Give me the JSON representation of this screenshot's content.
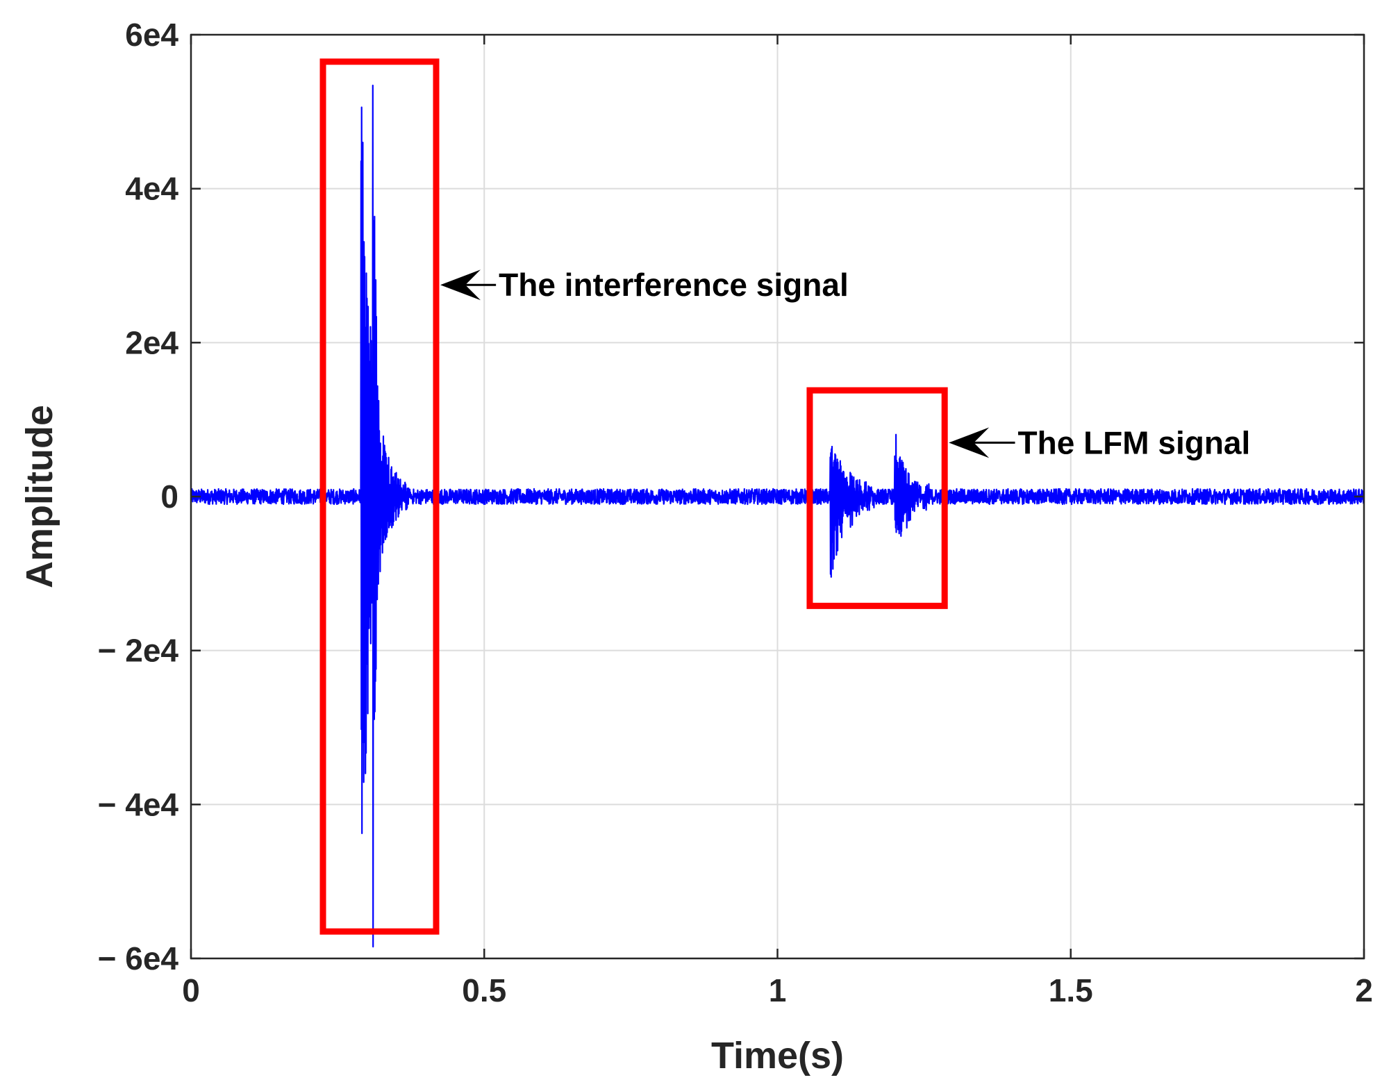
{
  "chart_data": {
    "type": "line",
    "title": "",
    "xlabel": "Time(s)",
    "ylabel": "Amplitude",
    "xlim": [
      0,
      2
    ],
    "ylim": [
      -60000,
      60000
    ],
    "grid": true,
    "xticks": [
      {
        "value": 0,
        "label": "0"
      },
      {
        "value": 0.5,
        "label": "0.5"
      },
      {
        "value": 1,
        "label": "1"
      },
      {
        "value": 1.5,
        "label": "1.5"
      },
      {
        "value": 2,
        "label": "2"
      }
    ],
    "yticks": [
      {
        "value": 60000,
        "label": "6e4"
      },
      {
        "value": 40000,
        "label": "4e4"
      },
      {
        "value": 20000,
        "label": "2e4"
      },
      {
        "value": 0,
        "label": "0"
      },
      {
        "value": -20000,
        "label": "− 2e4"
      },
      {
        "value": -40000,
        "label": "− 4e4"
      },
      {
        "value": -60000,
        "label": "− 6e4"
      }
    ],
    "series": [
      {
        "color": "#0000ff",
        "noise_amplitude": 1000,
        "bursts": [
          {
            "t_start": 0.29,
            "t_end": 0.375,
            "peak_max": 53500,
            "peak_min": -54500,
            "decay": 0.02
          },
          {
            "t_start": 0.31,
            "t_end": 0.32,
            "peak_max": 51500,
            "peak_min": -52500,
            "decay": 0.004
          },
          {
            "t_start": 1.09,
            "t_end": 1.165,
            "peak_max": 8000,
            "peak_min": -11000,
            "decay": 0.03
          },
          {
            "t_start": 1.2,
            "t_end": 1.26,
            "peak_max": 8500,
            "peak_min": -7500,
            "decay": 0.025
          }
        ]
      }
    ],
    "annotations": [
      {
        "text": "The interference signal",
        "box": {
          "x0": 0.225,
          "x1": 0.418,
          "y0": -56500,
          "y1": 56500
        },
        "color": "#ff0000",
        "arrow_to": {
          "x": 0.418,
          "y": 27500
        },
        "arrow_from": {
          "x": 0.52,
          "y": 27500
        }
      },
      {
        "text": "The LFM signal",
        "box": {
          "x0": 1.055,
          "x1": 1.285,
          "y0": -14200,
          "y1": 13800
        },
        "color": "#ff0000",
        "arrow_to": {
          "x": 1.285,
          "y": 7000
        },
        "arrow_from": {
          "x": 1.405,
          "y": 7000
        }
      }
    ]
  }
}
